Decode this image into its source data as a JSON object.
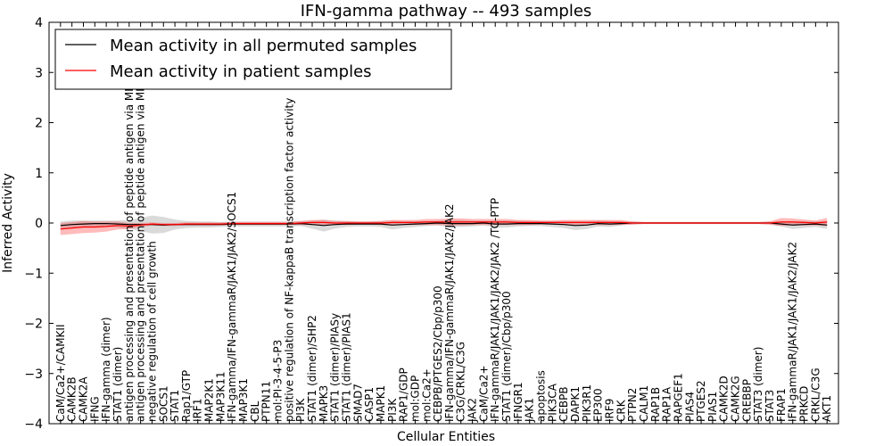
{
  "chart_data": {
    "type": "line",
    "title": "IFN-gamma pathway -- 493 samples",
    "xlabel": "Cellular Entities",
    "ylabel": "Inferred Activity",
    "ylim": [
      -4,
      4
    ],
    "yticks": [
      "4",
      "3",
      "2",
      "1",
      "0",
      "−1",
      "−2",
      "−3",
      "−4"
    ],
    "ytick_values": [
      4,
      3,
      2,
      1,
      0,
      -1,
      -2,
      -3,
      -4
    ],
    "grid": false,
    "legend_position": "top-left",
    "categories": [
      "CaM/Ca2+/CAMKII",
      "CAMK2B",
      "CAMK2A",
      "IFNG",
      "IFN-gamma (dimer)",
      "STAT1 (dimer)",
      "antigen processing and presentation of peptide antigen via MHC class I",
      "antigen processing and presentation of peptide antigen via MHC class II",
      "negative regulation of cell growth",
      "SOCS1",
      "STAT1",
      "Rap1/GTP",
      "IRF1",
      "MAP2K1",
      "MAP3K11",
      "IFN-gamma/IFN-gammaR/JAK1/JAK2/SOCS1",
      "MAP3K1",
      "CBL",
      "PTPN11",
      "mol:PI-3-4-5-P3",
      "positive regulation of NF-kappaB transcription factor activity",
      "PI3K",
      "STAT1 (dimer)/SHP2",
      "MAPK3",
      "STAT1 (dimer)/PIASy",
      "STAT1 (dimer)/PIAS1",
      "SMAD7",
      "CASP1",
      "MAPK1",
      "PI3K",
      "RAP1/GDP",
      "mol:GDP",
      "mol:Ca2+",
      "CEBPB/PTGES2/Cbp/p300",
      "IFN-gamma/IFN-gammaR/JAK1/JAK2/JAK2",
      "C3G/CRKL/C3G",
      "JAK2",
      "CaM/Ca2+",
      "IFN-gammaR/JAK1/JAK1/JAK2/JAK2  /TC-PTP",
      "STAT1 (dimer)/Cbp/p300",
      "IFNGR1",
      "JAK1",
      "apoptosis",
      "PIK3CA",
      "CEBPB",
      "DAPK1",
      "PIK3R1",
      "EP300",
      "IRF9",
      "CRK",
      "PTPN2",
      "CALM1",
      "RAP1B",
      "RAP1A",
      "RAPGEF1",
      "PIAS4",
      "PTGES2",
      "PIAS1",
      "CAMK2D",
      "CAMK2G",
      "CREBBP",
      "STAT3 (dimer)",
      "STAT3",
      "FRAP1",
      "IFN-gammaR/JAK1/JAK1/JAK2/JAK2",
      "PRKCD",
      "CRKL/C3G",
      "AKT1"
    ],
    "series": [
      {
        "name": "Mean activity in all permuted samples",
        "color": "#000000",
        "values": [
          -0.05,
          -0.03,
          -0.02,
          -0.01,
          -0.01,
          -0.02,
          -0.03,
          -0.03,
          -0.03,
          -0.04,
          -0.03,
          -0.03,
          -0.03,
          -0.03,
          -0.03,
          -0.02,
          -0.02,
          -0.02,
          -0.02,
          -0.02,
          -0.02,
          -0.01,
          -0.03,
          -0.05,
          -0.03,
          -0.02,
          -0.02,
          -0.02,
          -0.02,
          -0.04,
          -0.03,
          -0.02,
          -0.01,
          0.0,
          -0.01,
          -0.01,
          -0.01,
          0.0,
          -0.02,
          -0.02,
          -0.01,
          -0.01,
          -0.01,
          -0.02,
          -0.03,
          -0.05,
          -0.04,
          -0.01,
          -0.02,
          -0.01,
          0.0,
          0.0,
          0.0,
          0.0,
          0.0,
          0.0,
          0.0,
          0.0,
          0.0,
          0.0,
          0.0,
          0.0,
          0.0,
          -0.02,
          -0.04,
          -0.03,
          -0.02,
          -0.04
        ],
        "band": [
          0.08,
          0.08,
          0.07,
          0.06,
          0.06,
          0.07,
          0.09,
          0.13,
          0.18,
          0.16,
          0.1,
          0.07,
          0.06,
          0.06,
          0.05,
          0.05,
          0.05,
          0.05,
          0.05,
          0.05,
          0.05,
          0.05,
          0.08,
          0.12,
          0.08,
          0.06,
          0.05,
          0.05,
          0.06,
          0.09,
          0.07,
          0.06,
          0.05,
          0.05,
          0.07,
          0.07,
          0.06,
          0.05,
          0.07,
          0.07,
          0.06,
          0.05,
          0.05,
          0.06,
          0.07,
          0.09,
          0.08,
          0.06,
          0.06,
          0.04,
          0.03,
          0.02,
          0.02,
          0.02,
          0.02,
          0.02,
          0.02,
          0.02,
          0.02,
          0.02,
          0.02,
          0.02,
          0.03,
          0.05,
          0.08,
          0.07,
          0.06,
          0.08
        ]
      },
      {
        "name": "Mean activity in patient samples",
        "color": "#ff0000",
        "values": [
          -0.12,
          -0.1,
          -0.08,
          -0.08,
          -0.07,
          -0.05,
          -0.06,
          -0.04,
          -0.02,
          -0.03,
          -0.03,
          -0.02,
          -0.02,
          -0.02,
          -0.02,
          -0.01,
          -0.01,
          -0.01,
          -0.01,
          -0.01,
          -0.01,
          0.0,
          0.01,
          0.01,
          0.0,
          0.0,
          0.0,
          0.0,
          0.0,
          0.01,
          0.01,
          0.01,
          0.02,
          0.02,
          0.02,
          0.02,
          0.02,
          0.02,
          0.02,
          0.02,
          0.01,
          0.01,
          0.01,
          0.01,
          0.01,
          0.01,
          0.01,
          0.01,
          0.01,
          0.01,
          0.0,
          0.0,
          0.0,
          0.0,
          0.0,
          0.0,
          0.0,
          0.0,
          0.0,
          0.0,
          0.0,
          0.0,
          0.0,
          0.02,
          0.02,
          0.01,
          0.0,
          0.02
        ],
        "band": [
          0.12,
          0.12,
          0.12,
          0.11,
          0.1,
          0.08,
          0.06,
          0.04,
          0.03,
          0.03,
          0.03,
          0.03,
          0.03,
          0.03,
          0.03,
          0.03,
          0.03,
          0.03,
          0.03,
          0.03,
          0.03,
          0.04,
          0.05,
          0.05,
          0.04,
          0.04,
          0.03,
          0.03,
          0.04,
          0.05,
          0.05,
          0.05,
          0.06,
          0.06,
          0.07,
          0.07,
          0.06,
          0.06,
          0.06,
          0.06,
          0.05,
          0.05,
          0.04,
          0.04,
          0.05,
          0.05,
          0.05,
          0.05,
          0.05,
          0.05,
          0.03,
          0.02,
          0.02,
          0.02,
          0.02,
          0.02,
          0.02,
          0.02,
          0.02,
          0.02,
          0.02,
          0.02,
          0.03,
          0.08,
          0.07,
          0.06,
          0.05,
          0.08
        ]
      }
    ]
  }
}
